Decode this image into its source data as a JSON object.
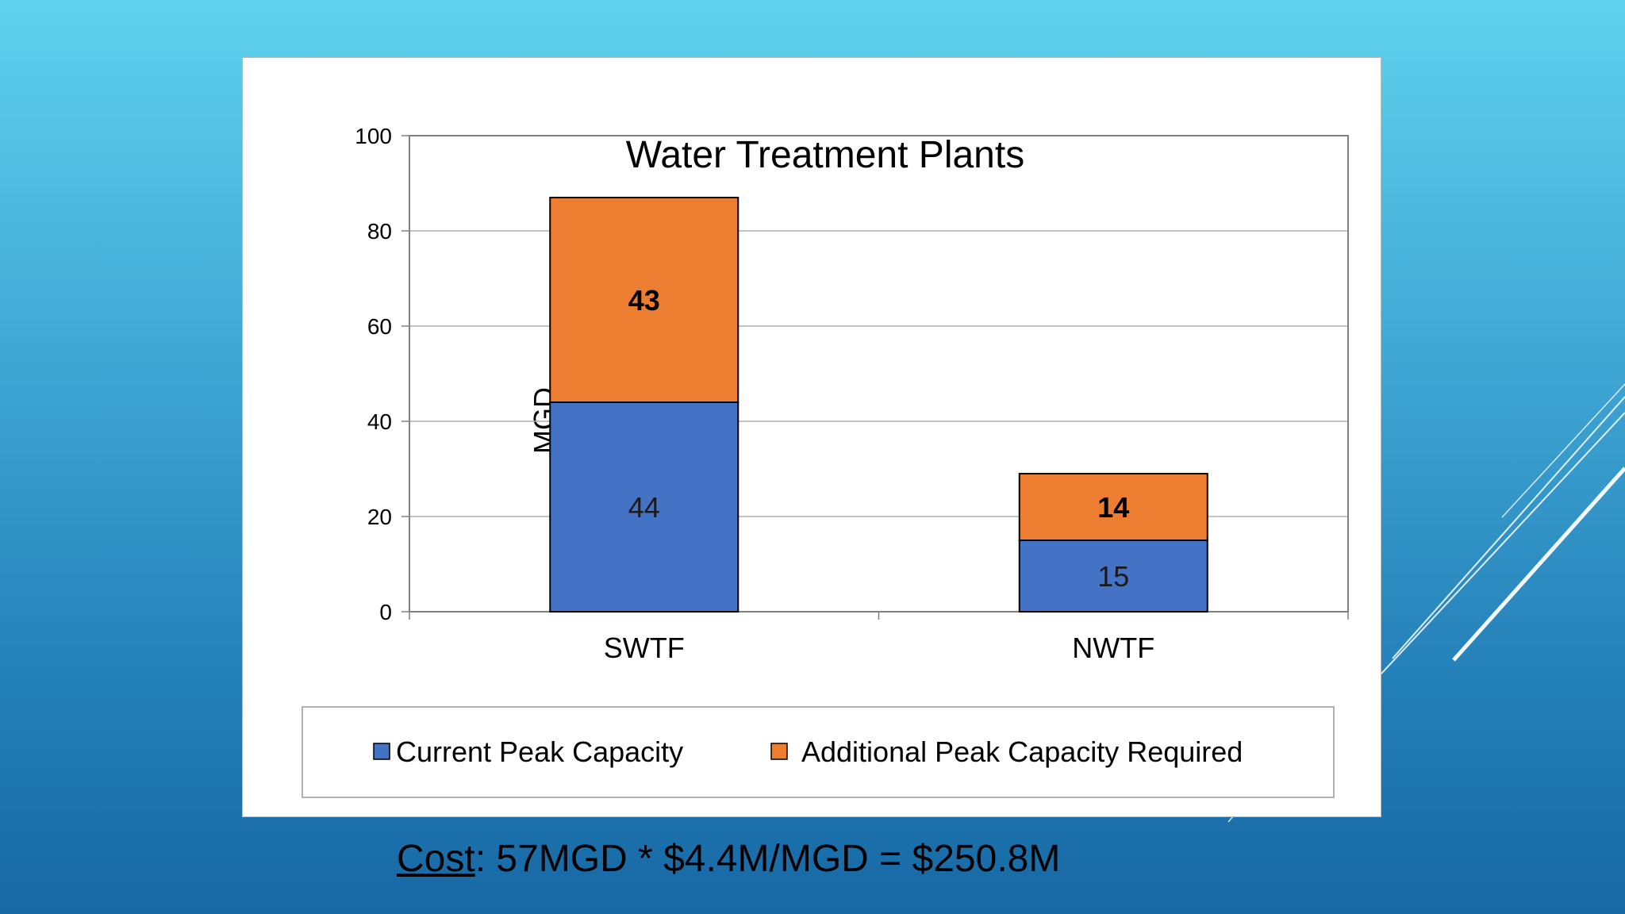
{
  "colors": {
    "current": "#4472c4",
    "additional": "#ed7d31",
    "grid": "#b0b0b0",
    "axis": "#808080"
  },
  "chart_data": {
    "type": "bar",
    "stacked": true,
    "title": "Water Treatment Plants",
    "ylabel": "MGD",
    "xlabel": "",
    "ylim": [
      0,
      100
    ],
    "yticks": [
      0,
      20,
      40,
      60,
      80,
      100
    ],
    "grid": true,
    "legend_position": "bottom",
    "categories": [
      "SWTF",
      "NWTF"
    ],
    "series": [
      {
        "name": "Current Peak Capacity",
        "values": [
          44,
          15
        ],
        "labels": [
          "44",
          "15"
        ],
        "color": "#4472c4"
      },
      {
        "name": "Additional Peak Capacity Required",
        "values": [
          43,
          14
        ],
        "labels": [
          "43",
          "14"
        ],
        "color": "#ed7d31"
      }
    ]
  },
  "footer": {
    "cost_label": "Cost",
    "cost_text": ": 57MGD * $4.4M/MGD = $250.8M"
  }
}
